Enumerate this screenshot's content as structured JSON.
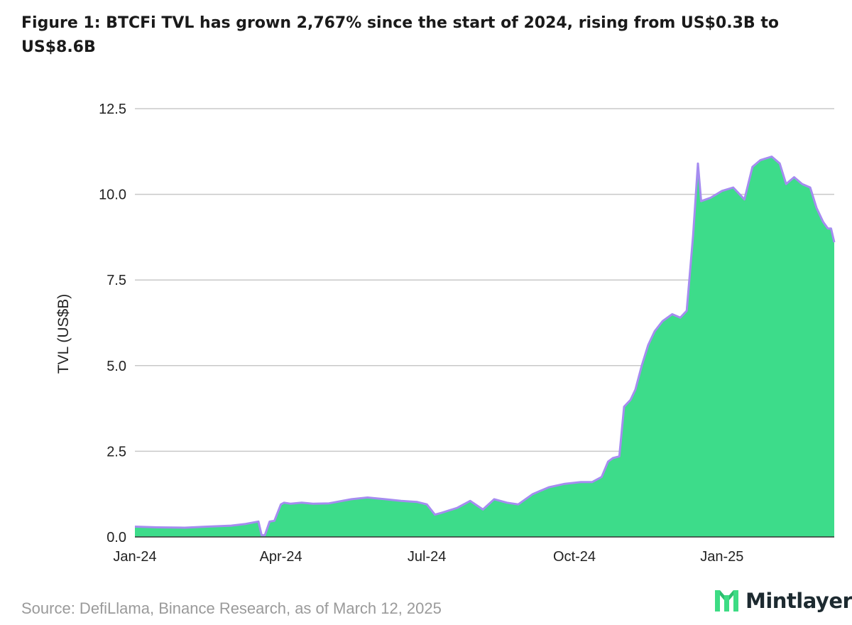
{
  "title": "Figure 1: BTCFi TVL has grown 2,767% since the start of 2024, rising from US$0.3B to US$8.6B",
  "source": "Source: DefiLlama, Binance Research, as of March 12, 2025",
  "brand": {
    "name": "Mintlayer",
    "icon": "mintlayer-logo-icon",
    "color": "#1d2a30",
    "accent": "#3ddc84"
  },
  "chart_data": {
    "type": "area",
    "ylabel": "TVL (US$B)",
    "ylim": [
      0,
      12.5
    ],
    "yticks": [
      "0.0",
      "2.5",
      "5.0",
      "7.5",
      "10.0",
      "12.5"
    ],
    "xticks": [
      "Jan-24",
      "Apr-24",
      "Jul-24",
      "Oct-24",
      "Jan-25"
    ],
    "xtick_dates": [
      "2024-01-01",
      "2024-04-01",
      "2024-07-01",
      "2024-10-01",
      "2025-01-01"
    ],
    "xlim": [
      "2024-01-01",
      "2025-03-12"
    ],
    "grid": true,
    "colors": {
      "fill": "#3ddc8a",
      "line": "#a58cf0",
      "grid": "#c8c8c8"
    },
    "series": [
      {
        "x": [
          "2024-01-01",
          "2024-01-15",
          "2024-02-01",
          "2024-02-15",
          "2024-03-01",
          "2024-03-10",
          "2024-03-18",
          "2024-03-20",
          "2024-03-22",
          "2024-03-25",
          "2024-03-28",
          "2024-04-01",
          "2024-04-03",
          "2024-04-07",
          "2024-04-14",
          "2024-04-21",
          "2024-05-01",
          "2024-05-15",
          "2024-05-25",
          "2024-06-05",
          "2024-06-15",
          "2024-06-25",
          "2024-07-01",
          "2024-07-06",
          "2024-07-10",
          "2024-07-20",
          "2024-07-28",
          "2024-08-05",
          "2024-08-12",
          "2024-08-20",
          "2024-08-27",
          "2024-09-05",
          "2024-09-15",
          "2024-09-25",
          "2024-10-05",
          "2024-10-12",
          "2024-10-18",
          "2024-10-22",
          "2024-10-25",
          "2024-10-29",
          "2024-11-01",
          "2024-11-05",
          "2024-11-08",
          "2024-11-12",
          "2024-11-16",
          "2024-11-20",
          "2024-11-25",
          "2024-12-01",
          "2024-12-06",
          "2024-12-10",
          "2024-12-12",
          "2024-12-14",
          "2024-12-17",
          "2024-12-19",
          "2024-12-25",
          "2025-01-01",
          "2025-01-08",
          "2025-01-15",
          "2025-01-20",
          "2025-01-25",
          "2025-02-01",
          "2025-02-06",
          "2025-02-10",
          "2025-02-15",
          "2025-02-20",
          "2025-02-25",
          "2025-03-01",
          "2025-03-05",
          "2025-03-08",
          "2025-03-10",
          "2025-03-12"
        ],
        "values": [
          0.3,
          0.28,
          0.27,
          0.3,
          0.33,
          0.38,
          0.45,
          0.05,
          0.05,
          0.45,
          0.47,
          0.95,
          1.0,
          0.97,
          1.0,
          0.97,
          0.98,
          1.1,
          1.15,
          1.1,
          1.05,
          1.02,
          0.95,
          0.65,
          0.7,
          0.85,
          1.05,
          0.8,
          1.1,
          1.0,
          0.95,
          1.25,
          1.45,
          1.55,
          1.6,
          1.6,
          1.75,
          2.2,
          2.3,
          2.35,
          3.8,
          4.0,
          4.3,
          5.0,
          5.6,
          6.0,
          6.3,
          6.5,
          6.4,
          6.6,
          7.7,
          8.8,
          10.9,
          9.8,
          9.9,
          10.1,
          10.2,
          9.85,
          10.8,
          11.0,
          11.1,
          10.9,
          10.3,
          10.5,
          10.3,
          10.2,
          9.6,
          9.2,
          9.0,
          9.0,
          8.6
        ]
      }
    ]
  }
}
